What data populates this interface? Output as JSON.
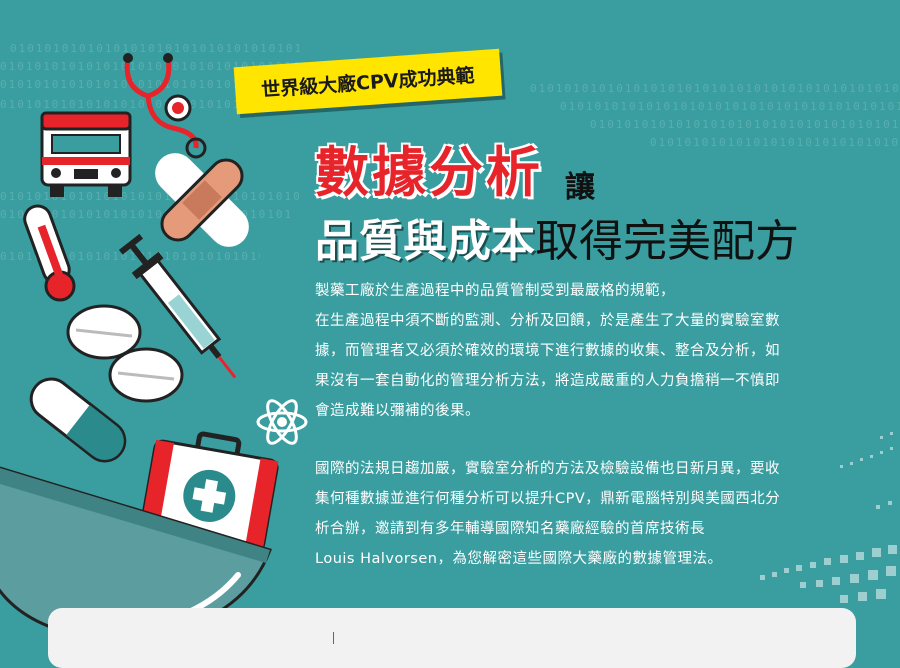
{
  "badge": {
    "label": "世界級大廠CPV成功典範"
  },
  "headline": {
    "highlight": "數據分析",
    "connector": "讓",
    "emphasis": "品質與成本",
    "rest": "取得完美配方"
  },
  "paragraphs": [
    {
      "lines": [
        "製藥工廠於生產過程中的品質管制受到最嚴格的規範，",
        "在生產過程中須不斷的監測、分析及回饋，於是產生了大量的實驗室數",
        "據，而管理者又必須於確效的環境下進行數據的收集、整合及分析，如",
        "果沒有一套自動化的管理分析方法，將造成嚴重的人力負擔稍一不慎即",
        "會造成難以彌補的後果。"
      ]
    },
    {
      "lines": [
        "國際的法規日趨加嚴，實驗室分析的方法及檢驗設備也日新月異，要收",
        "集何種數據並進行何種分析可以提升CPV，鼎新電腦特別與美國西北分",
        "析合辦，邀請到有多年輔導國際知名藥廠經驗的首席技術長",
        "Louis Halvorsen，為您解密這些國際大藥廠的數據管理法。"
      ]
    }
  ],
  "binary_text": "0101010101010101010101010101010101010101010101010101010101010101",
  "colors": {
    "background": "#3a9ea0",
    "accent_red": "#e8242b",
    "badge_yellow": "#ffe500"
  },
  "icons": [
    "ambulance-icon",
    "stethoscope-icon",
    "bandage-icon",
    "thermometer-icon",
    "syringe-icon",
    "pill-icon",
    "capsule-icon",
    "atom-icon",
    "first-aid-kit-icon",
    "bowl-icon"
  ]
}
